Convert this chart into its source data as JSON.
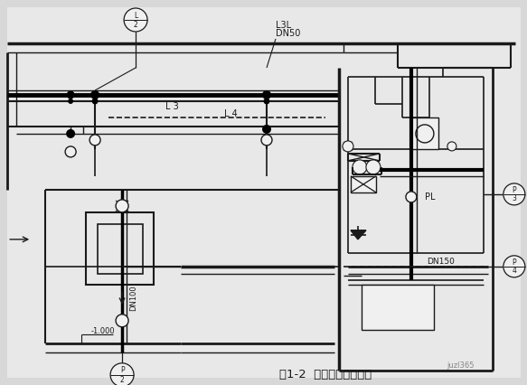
{
  "bg_color": "#d8d8d8",
  "line_color": "#1a1a1a",
  "white": "#f0f0f0",
  "title": "图1-2  室内给排水平面图",
  "watermark": "juzl365",
  "labels": {
    "l3l": "L3L",
    "dn50": "DN50",
    "l3": "L 3",
    "l4": "L 4",
    "dn150": "DN150",
    "dn100": "DN100",
    "pl": "PL",
    "depth": "-1.000"
  }
}
